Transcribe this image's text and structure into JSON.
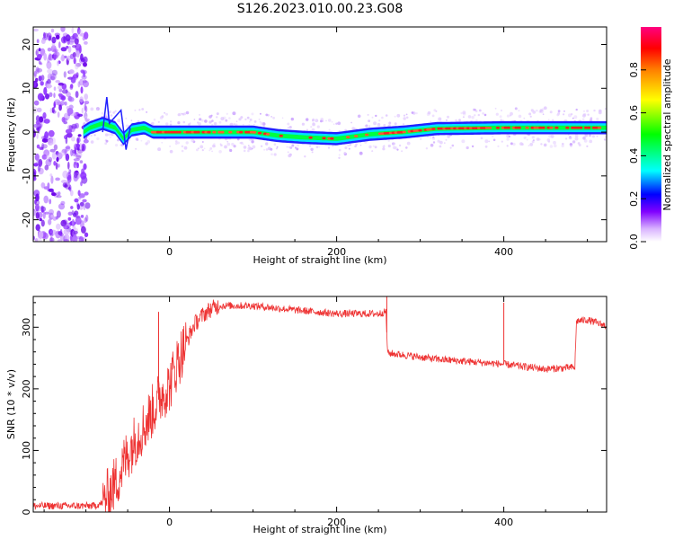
{
  "title": "S126.2023.010.00.23.G08",
  "chart_data": [
    {
      "type": "heatmap",
      "xlabel": "Height of straight line (km)",
      "ylabel": "Frequency (Hz)",
      "xlim": [
        -163,
        523
      ],
      "ylim": [
        -25,
        24
      ],
      "xticks": [
        0,
        200,
        400
      ],
      "yticks": [
        -20,
        -10,
        0,
        10,
        20
      ],
      "colorbar": {
        "label": "Normalized spectral amplitude",
        "range": [
          0,
          1
        ],
        "ticks": [
          0.0,
          0.2,
          0.4,
          0.6,
          0.8
        ],
        "colors": [
          "#ffffff",
          "#c080ff",
          "#8000ff",
          "#0000ff",
          "#00ffff",
          "#00ff00",
          "#ffff00",
          "#ff8000",
          "#ff0000",
          "#ff0080"
        ]
      },
      "ridge": [
        {
          "x": -103,
          "freq": 0.0
        },
        {
          "x": -95,
          "freq": 1.0
        },
        {
          "x": -80,
          "freq": 2.0
        },
        {
          "x": -65,
          "freq": 1.0
        },
        {
          "x": -55,
          "freq": -1.5
        },
        {
          "x": -45,
          "freq": 0.5
        },
        {
          "x": -30,
          "freq": 1.0
        },
        {
          "x": -20,
          "freq": 0.0
        },
        {
          "x": 100,
          "freq": 0.0
        },
        {
          "x": 130,
          "freq": -0.8
        },
        {
          "x": 160,
          "freq": -1.2
        },
        {
          "x": 200,
          "freq": -1.5
        },
        {
          "x": 240,
          "freq": -0.5
        },
        {
          "x": 280,
          "freq": 0.0
        },
        {
          "x": 320,
          "freq": 0.8
        },
        {
          "x": 400,
          "freq": 1.0
        },
        {
          "x": 480,
          "freq": 1.0
        },
        {
          "x": 523,
          "freq": 1.0
        }
      ],
      "noise_region_x": [
        -163,
        -98
      ]
    },
    {
      "type": "line",
      "xlabel": "Height of straight line (km)",
      "ylabel": "SNR (10 * v/v)",
      "xlim": [
        -163,
        523
      ],
      "ylim": [
        0,
        350
      ],
      "xticks": [
        0,
        200,
        400
      ],
      "yticks": [
        0,
        100,
        200,
        300
      ],
      "series": [
        {
          "color": "#ee3333",
          "x": [
            -163,
            -120,
            -90,
            -80,
            -70,
            -60,
            -50,
            -40,
            -30,
            -20,
            -10,
            0,
            10,
            20,
            30,
            40,
            50,
            60,
            80,
            100,
            150,
            200,
            250,
            259,
            261,
            280,
            320,
            350,
            400,
            450,
            485,
            487,
            500,
            523
          ],
          "y": [
            10,
            10,
            10,
            15,
            35,
            60,
            95,
            120,
            140,
            165,
            190,
            205,
            245,
            275,
            305,
            320,
            330,
            335,
            335,
            335,
            328,
            322,
            322,
            325,
            258,
            255,
            248,
            245,
            240,
            232,
            235,
            310,
            312,
            302
          ]
        }
      ],
      "spikes": [
        {
          "x": -13,
          "y": 325
        },
        {
          "x": 400,
          "y": 340
        },
        {
          "x": 260,
          "y": 350
        }
      ]
    }
  ]
}
